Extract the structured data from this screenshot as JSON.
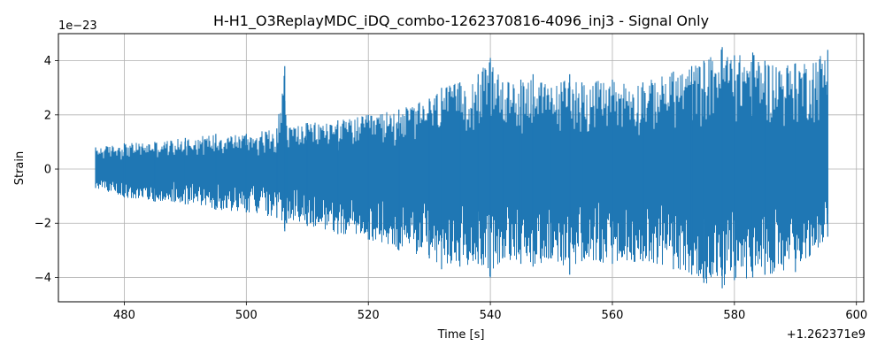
{
  "chart_data": {
    "type": "line",
    "title": "H-H1_O3ReplayMDC_iDQ_combo-1262370816-4096_inj3 - Signal Only",
    "xlabel": "Time [s]",
    "ylabel": "Strain",
    "x_offset_label": "+1.262371e9",
    "y_multiplier_label": "1e−23",
    "xlim": [
      469.2,
      601.2
    ],
    "ylim": [
      -4.9,
      5.0
    ],
    "x_ticks": [
      480,
      500,
      520,
      540,
      560,
      580,
      600
    ],
    "x_tick_labels": [
      "480",
      "500",
      "520",
      "540",
      "560",
      "580",
      "600"
    ],
    "y_ticks": [
      -4,
      -2,
      0,
      2,
      4
    ],
    "y_tick_labels": [
      "−4",
      "−2",
      "0",
      "2",
      "4"
    ],
    "grid": true,
    "line_color": "#1f77b4",
    "series": [
      {
        "x": [
          475.3,
          480,
          485,
          490,
          495,
          500,
          505,
          506.3,
          506.6,
          510,
          515,
          520,
          525,
          530,
          532,
          535,
          538,
          540,
          542,
          545,
          547,
          550,
          553,
          555,
          560,
          565,
          570,
          573,
          575,
          578,
          580,
          583,
          585,
          590,
          595.3
        ],
        "upper": [
          0.8,
          0.95,
          1.0,
          1.15,
          1.3,
          1.3,
          1.5,
          3.8,
          1.6,
          1.7,
          1.8,
          2.0,
          2.2,
          2.6,
          3.0,
          3.2,
          3.5,
          4.1,
          3.2,
          3.3,
          3.5,
          3.0,
          3.5,
          3.2,
          3.3,
          3.2,
          3.6,
          3.8,
          4.0,
          4.5,
          4.2,
          4.3,
          4.0,
          3.9,
          4.4
        ],
        "lower": [
          -0.7,
          -1.05,
          -1.2,
          -1.3,
          -1.5,
          -1.6,
          -1.8,
          -2.3,
          -2.0,
          -2.1,
          -2.4,
          -2.6,
          -3.0,
          -3.3,
          -3.7,
          -3.6,
          -3.5,
          -4.0,
          -3.3,
          -3.5,
          -3.6,
          -3.3,
          -3.9,
          -3.4,
          -3.5,
          -3.4,
          -3.7,
          -3.9,
          -4.2,
          -4.4,
          -4.1,
          -4.0,
          -3.9,
          -3.8,
          -2.5
        ]
      }
    ]
  }
}
